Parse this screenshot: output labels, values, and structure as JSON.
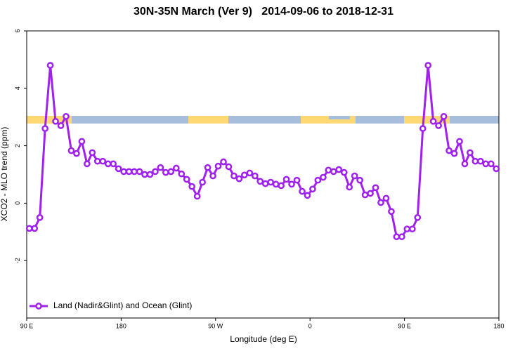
{
  "chart_data": {
    "type": "line",
    "title": "30N-35N March (Ver 9)   2014-09-06 to 2018-12-31",
    "x_label": "Longitude (deg E)",
    "y_label": "XCO2 - MLO trend (ppm)",
    "xlim": [
      90,
      540
    ],
    "xticks": [
      {
        "value": 90,
        "label": "90 E"
      },
      180,
      {
        "value": 270,
        "label": "90 W"
      },
      {
        "value": 360,
        "label": "0"
      },
      {
        "value": 450,
        "label": "90 E"
      },
      {
        "value": 540,
        "label": "180"
      }
    ],
    "ylim": [
      -4,
      6
    ],
    "yticks": [
      -2,
      0,
      2,
      4,
      6
    ],
    "grid": false,
    "legend": "bottom-left",
    "x": [
      92.5,
      97.5,
      102.5,
      107.5,
      112.5,
      117.5,
      122.5,
      127.5,
      132.5,
      137.5,
      142.5,
      147.5,
      152.5,
      157.5,
      162.5,
      167.5,
      172.5,
      177.5,
      182.5,
      187.5,
      192.5,
      197.5,
      202.5,
      207.5,
      212.5,
      217.5,
      222.5,
      227.5,
      232.5,
      237.5,
      242.5,
      247.5,
      252.5,
      257.5,
      262.5,
      267.5,
      272.5,
      277.5,
      282.5,
      287.5,
      292.5,
      297.5,
      302.5,
      307.5,
      312.5,
      317.5,
      322.5,
      327.5,
      332.5,
      337.5,
      342.5,
      347.5,
      352.5,
      357.5,
      362.5,
      367.5,
      372.5,
      377.5,
      382.5,
      387.5,
      392.5,
      397.5,
      402.5,
      407.5,
      412.5,
      417.5,
      422.5,
      427.5,
      432.5,
      437.5,
      442.5,
      447.5,
      452.5,
      457.5,
      462.5,
      467.5,
      472.5,
      477.5,
      482.5,
      487.5,
      492.5,
      497.5,
      502.5,
      507.5,
      512.5,
      517.5,
      522.5,
      527.5,
      532.5,
      537.5
    ],
    "series": [
      {
        "name": "Land (Nadir&Glint) and Ocean (Glint)",
        "color": "#a020f0",
        "values": [
          -0.88,
          -0.88,
          -0.5,
          2.6,
          4.8,
          2.85,
          2.7,
          3.02,
          1.83,
          1.73,
          2.15,
          1.37,
          1.76,
          1.46,
          1.46,
          1.37,
          1.37,
          1.2,
          1.1,
          1.1,
          1.1,
          1.1,
          1.0,
          1.0,
          1.1,
          1.24,
          1.07,
          1.1,
          1.22,
          1.02,
          0.83,
          0.58,
          0.24,
          0.73,
          1.24,
          0.95,
          1.29,
          1.44,
          1.27,
          0.95,
          0.85,
          0.98,
          1.05,
          0.95,
          0.76,
          0.68,
          0.73,
          0.66,
          0.61,
          0.83,
          0.66,
          0.8,
          0.41,
          0.27,
          0.49,
          0.8,
          0.9,
          1.15,
          1.1,
          1.17,
          1.07,
          0.56,
          0.95,
          0.8,
          0.29,
          0.34,
          0.54,
          0.02,
          0.17,
          -0.29,
          -1.17,
          -1.17,
          -0.9,
          -0.9,
          -0.5,
          2.6,
          4.8,
          2.85,
          2.7,
          3.02,
          1.83,
          1.73,
          2.15,
          1.37,
          1.76,
          1.46,
          1.46,
          1.37,
          1.37,
          1.2
        ]
      }
    ]
  }
}
